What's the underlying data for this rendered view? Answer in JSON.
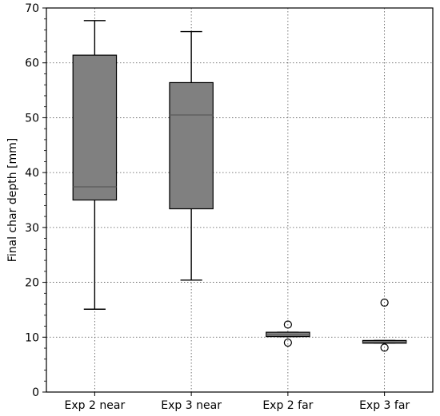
{
  "chart_data": {
    "type": "box",
    "title": "",
    "xlabel": "",
    "ylabel": "Final char depth [mm]",
    "ylim": [
      0,
      70
    ],
    "yticks": [
      0,
      10,
      20,
      30,
      40,
      50,
      60,
      70
    ],
    "grid": true,
    "grid_style": "dotted",
    "box_color": "#808080",
    "categories": [
      "Exp 2 near",
      "Exp 3 near",
      "Exp 2 far",
      "Exp 3 far"
    ],
    "boxes": [
      {
        "category": "Exp 2 near",
        "whisker_low": 15.1,
        "q1": 35.0,
        "median": 37.4,
        "q3": 61.4,
        "whisker_high": 67.7,
        "fliers": []
      },
      {
        "category": "Exp 3 near",
        "whisker_low": 20.4,
        "q1": 33.4,
        "median": 50.5,
        "q3": 56.4,
        "whisker_high": 65.7,
        "fliers": []
      },
      {
        "category": "Exp 2 far",
        "whisker_low": 10.1,
        "q1": 10.1,
        "median": 10.4,
        "q3": 10.9,
        "whisker_high": 10.9,
        "fliers": [
          9.0,
          12.3
        ]
      },
      {
        "category": "Exp 3 far",
        "whisker_low": 8.9,
        "q1": 8.9,
        "median": 9.1,
        "q3": 9.4,
        "whisker_high": 9.4,
        "fliers": [
          8.1,
          16.3
        ]
      }
    ]
  }
}
